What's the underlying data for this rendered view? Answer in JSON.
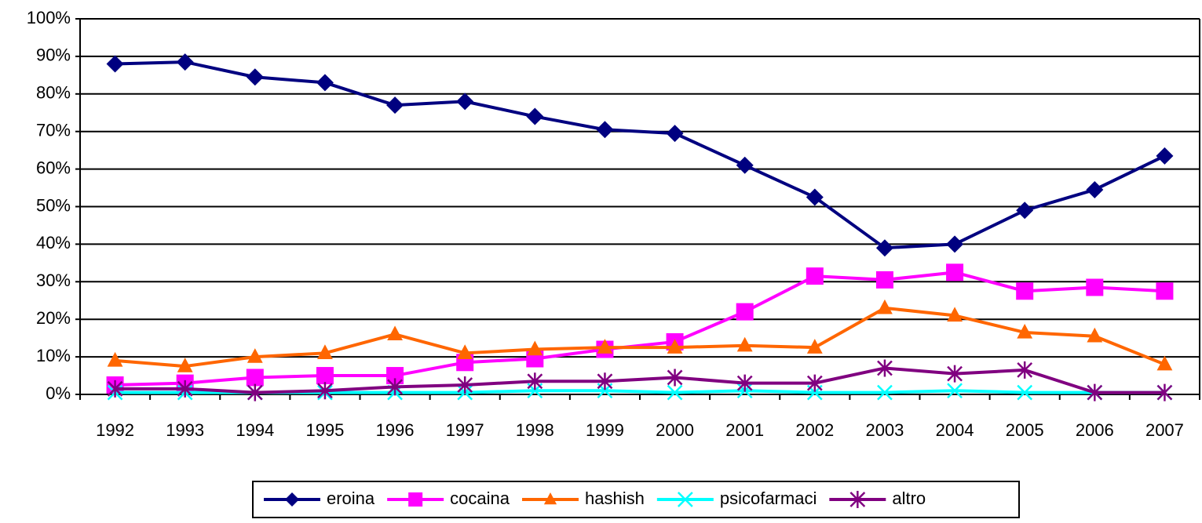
{
  "chart_data": {
    "type": "line",
    "categories": [
      "1992",
      "1993",
      "1994",
      "1995",
      "1996",
      "1997",
      "1998",
      "1999",
      "2000",
      "2001",
      "2002",
      "2003",
      "2004",
      "2005",
      "2006",
      "2007"
    ],
    "series": [
      {
        "name": "eroina",
        "color": "#000080",
        "marker": "diamond",
        "values": [
          88,
          88.5,
          84.5,
          83,
          77,
          78,
          74,
          70.5,
          69.5,
          61,
          52.5,
          39,
          40,
          49,
          54.5,
          63.5
        ]
      },
      {
        "name": "cocaina",
        "color": "#ff00ff",
        "marker": "square",
        "values": [
          2.5,
          3,
          4.5,
          5,
          5,
          8.5,
          9.5,
          12,
          14,
          22,
          31.5,
          30.5,
          32.5,
          27.5,
          28.5,
          27.5
        ]
      },
      {
        "name": "hashish",
        "color": "#ff6600",
        "marker": "triangle",
        "values": [
          9,
          7.5,
          10,
          11,
          16,
          11,
          12,
          12.5,
          12.5,
          13,
          12.5,
          23,
          21,
          16.5,
          15.5,
          8
        ]
      },
      {
        "name": "psicofarmaci",
        "color": "#00ffff",
        "marker": "x",
        "values": [
          0.5,
          0.5,
          0.5,
          0.5,
          0.5,
          0.5,
          1,
          1,
          0.5,
          1,
          0.5,
          0.5,
          1,
          0.5,
          0.5,
          0.5
        ]
      },
      {
        "name": "altro",
        "color": "#800080",
        "marker": "star",
        "values": [
          1.5,
          1.5,
          0.5,
          1,
          2,
          2.5,
          3.5,
          3.5,
          4.5,
          3,
          3,
          7,
          5.5,
          6.5,
          0.5,
          0.5
        ]
      }
    ],
    "ylim": [
      0,
      100
    ],
    "yticks": [
      {
        "value": 0,
        "label": "0%"
      },
      {
        "value": 10,
        "label": "10%"
      },
      {
        "value": 20,
        "label": "20%"
      },
      {
        "value": 30,
        "label": "30%"
      },
      {
        "value": 40,
        "label": "40%"
      },
      {
        "value": 50,
        "label": "50%"
      },
      {
        "value": 60,
        "label": "60%"
      },
      {
        "value": 70,
        "label": "70%"
      },
      {
        "value": 80,
        "label": "80%"
      },
      {
        "value": 90,
        "label": "90%"
      },
      {
        "value": 100,
        "label": "100%"
      }
    ],
    "grid": true,
    "legend": "bottom"
  }
}
